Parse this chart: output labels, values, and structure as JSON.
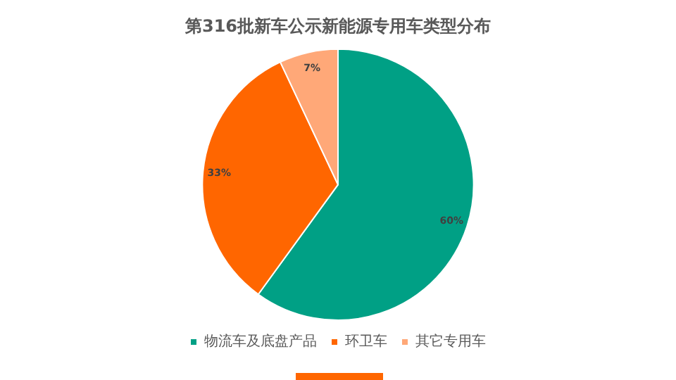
{
  "chart_data": {
    "type": "pie",
    "title": "第316批新车公示新能源专用车类型分布",
    "categories": [
      "物流车及底盘产品",
      "环卫车",
      "其它专用车"
    ],
    "values": [
      60,
      33,
      7
    ],
    "value_labels": [
      "60%",
      "33%",
      "7%"
    ],
    "colors": [
      "#00a085",
      "#ff6600",
      "#ffa878"
    ],
    "legend": "bottom"
  }
}
